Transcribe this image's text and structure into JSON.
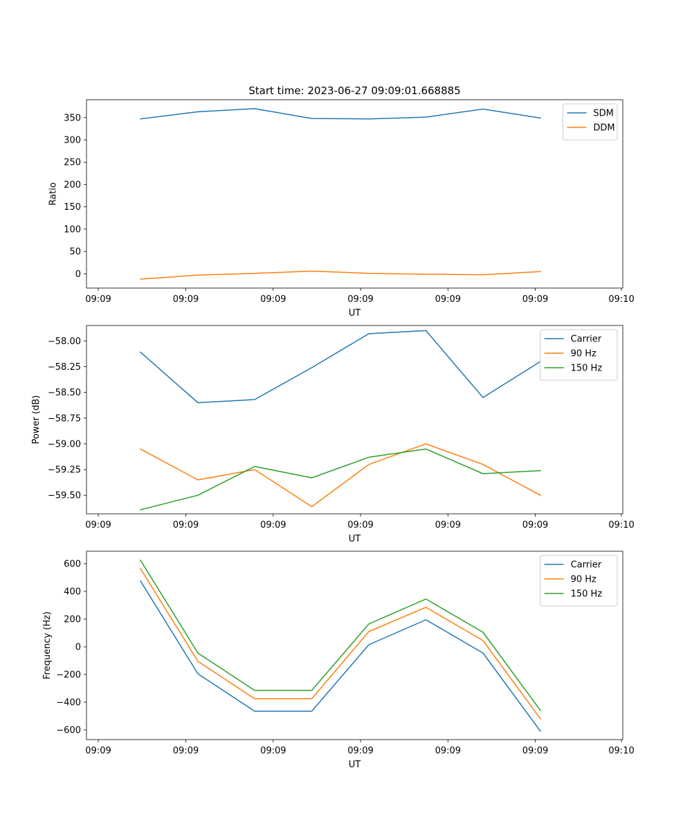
{
  "figure_title": "Start time: 2023-06-27 09:09:01.668885",
  "chart_data": [
    {
      "type": "line",
      "title": "Start time: 2023-06-27 09:09:01.668885",
      "xlabel": "UT",
      "ylabel": "Ratio",
      "x_tick_labels": [
        "09:09",
        "09:09",
        "09:09",
        "09:09",
        "09:09",
        "09:09",
        "09:10"
      ],
      "y_ticks": [
        0,
        50,
        100,
        150,
        200,
        250,
        300,
        350
      ],
      "y_tick_labels": [
        "0",
        "50",
        "100",
        "150",
        "200",
        "250",
        "300",
        "350"
      ],
      "ylim": [
        -32,
        390
      ],
      "legend": "top-right",
      "grid": false,
      "series": [
        {
          "name": "SDM",
          "color": "#1f77b4",
          "values": [
            347,
            363,
            370,
            348,
            347,
            351,
            369,
            349
          ]
        },
        {
          "name": "DDM",
          "color": "#ff7f0e",
          "values": [
            -12,
            -3,
            1,
            6,
            1,
            -1,
            -2,
            5
          ]
        }
      ]
    },
    {
      "type": "line",
      "title": "",
      "xlabel": "UT",
      "ylabel": "Power (dB)",
      "x_tick_labels": [
        "09:09",
        "09:09",
        "09:09",
        "09:09",
        "09:09",
        "09:09",
        "09:10"
      ],
      "y_ticks": [
        -59.5,
        -59.25,
        -59.0,
        -58.75,
        -58.5,
        -58.25,
        -58.0
      ],
      "y_tick_labels": [
        "−59.50",
        "−59.25",
        "−59.00",
        "−58.75",
        "−58.50",
        "−58.25",
        "−58.00"
      ],
      "ylim": [
        -59.68,
        -57.85
      ],
      "legend": "top-right",
      "grid": false,
      "series": [
        {
          "name": "Carrier",
          "color": "#1f77b4",
          "values": [
            -58.11,
            -58.6,
            -58.57,
            -58.26,
            -57.93,
            -57.9,
            -58.55,
            -58.2
          ]
        },
        {
          "name": "90 Hz",
          "color": "#ff7f0e",
          "values": [
            -59.05,
            -59.35,
            -59.25,
            -59.61,
            -59.2,
            -59.0,
            -59.2,
            -59.5
          ]
        },
        {
          "name": "150 Hz",
          "color": "#2ca02c",
          "values": [
            -59.64,
            -59.5,
            -59.22,
            -59.33,
            -59.13,
            -59.05,
            -59.29,
            -59.26
          ]
        }
      ]
    },
    {
      "type": "line",
      "title": "",
      "xlabel": "UT",
      "ylabel": "Frequency (Hz)",
      "x_tick_labels": [
        "09:09",
        "09:09",
        "09:09",
        "09:09",
        "09:09",
        "09:09",
        "09:10"
      ],
      "y_ticks": [
        -600,
        -400,
        -200,
        0,
        200,
        400,
        600
      ],
      "y_tick_labels": [
        "−600",
        "−400",
        "−200",
        "0",
        "200",
        "400",
        "600"
      ],
      "ylim": [
        -670,
        690
      ],
      "legend": "top-right",
      "grid": false,
      "series": [
        {
          "name": "Carrier",
          "color": "#1f77b4",
          "values": [
            475,
            -195,
            -465,
            -465,
            15,
            195,
            -45,
            -610
          ]
        },
        {
          "name": "90 Hz",
          "color": "#ff7f0e",
          "values": [
            565,
            -105,
            -375,
            -375,
            110,
            285,
            45,
            -520
          ]
        },
        {
          "name": "150 Hz",
          "color": "#2ca02c",
          "values": [
            625,
            -45,
            -315,
            -315,
            165,
            345,
            105,
            -460
          ]
        }
      ]
    }
  ]
}
